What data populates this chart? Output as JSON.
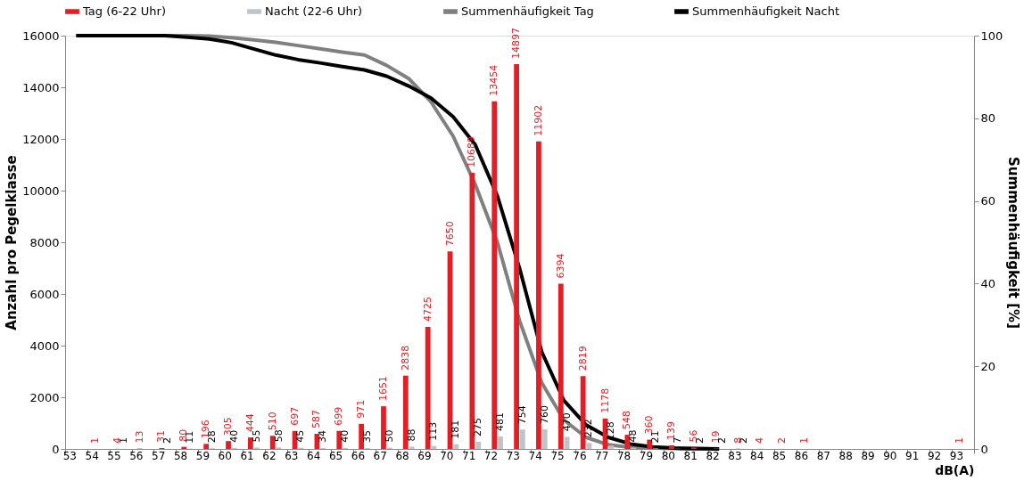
{
  "chart_data": {
    "type": "bar",
    "xlabel": "dB(A)",
    "ylabel": "Anzahl pro Pegelklasse",
    "y2label": "Summenhäufigkeit [%]",
    "categories": [
      "53",
      "54",
      "55",
      "56",
      "57",
      "58",
      "59",
      "60",
      "61",
      "62",
      "63",
      "64",
      "65",
      "66",
      "67",
      "68",
      "69",
      "70",
      "71",
      "72",
      "73",
      "74",
      "75",
      "76",
      "77",
      "78",
      "79",
      "80",
      "81",
      "82",
      "83",
      "84",
      "85",
      "86",
      "87",
      "88",
      "89",
      "90",
      "91",
      "92",
      "93"
    ],
    "ylim": [
      0,
      16000
    ],
    "yticks": [
      0,
      2000,
      4000,
      6000,
      8000,
      10000,
      12000,
      14000,
      16000
    ],
    "y2lim": [
      0,
      100
    ],
    "y2ticks": [
      0,
      20,
      40,
      60,
      80,
      100
    ],
    "grid": false,
    "legend": "top",
    "series": [
      {
        "name": "Tag (6-22 Uhr)",
        "color": "#e31e24",
        "values": [
          null,
          1,
          4,
          13,
          31,
          80,
          196,
          305,
          444,
          510,
          697,
          587,
          699,
          971,
          1651,
          2838,
          4725,
          7650,
          10689,
          13454,
          14897,
          11902,
          6394,
          2819,
          1178,
          548,
          360,
          139,
          56,
          19,
          8,
          4,
          2,
          1,
          null,
          null,
          null,
          null,
          null,
          null,
          1
        ],
        "value_labels": [
          null,
          "1",
          "4",
          "13",
          "31",
          "80",
          "196",
          "305",
          "444",
          "510",
          "697",
          "587",
          "699",
          "971",
          "1651",
          "2838",
          "4725",
          "7650",
          "10689",
          "13454",
          "14897",
          "11902",
          "6394",
          "2819",
          "1178",
          "548",
          "360",
          "139",
          "56",
          "19",
          "8",
          "4",
          "2",
          "1",
          null,
          null,
          null,
          null,
          null,
          null,
          "1"
        ]
      },
      {
        "name": "Nacht (22-6 Uhr)",
        "color": "#bfc4c8",
        "values": [
          null,
          null,
          1,
          null,
          2,
          11,
          28,
          40,
          55,
          58,
          45,
          34,
          40,
          35,
          50,
          88,
          113,
          181,
          275,
          481,
          754,
          760,
          470,
          232,
          128,
          48,
          21,
          7,
          2,
          2,
          2,
          null,
          null,
          null,
          null,
          null,
          null,
          null,
          null,
          null,
          null
        ],
        "value_labels": [
          null,
          null,
          "1",
          null,
          "2",
          "11",
          "28",
          "40",
          "55",
          "58",
          "45",
          "34",
          "40",
          "35",
          "50",
          "88",
          "113",
          "181",
          "275",
          "481",
          "754",
          "760",
          "470",
          "232",
          "128",
          "48",
          "21",
          "7",
          "2",
          "2",
          "2",
          null,
          null,
          null,
          null,
          null,
          null,
          null,
          null,
          null,
          null
        ]
      },
      {
        "name": "Summenhäufigkeit Tag",
        "type": "line",
        "axis": "y2",
        "color": "#808080",
        "values": [
          100,
          100,
          100,
          100,
          100,
          100,
          99.9,
          99.5,
          99,
          98.4,
          97.6,
          96.8,
          96,
          95.3,
          92.8,
          89.6,
          84,
          75.7,
          64,
          50,
          31,
          16,
          7,
          2.8,
          1,
          0.4,
          0.2,
          0.1,
          0,
          0,
          null,
          null,
          null,
          null,
          null,
          null,
          null,
          null,
          null,
          null,
          null
        ]
      },
      {
        "name": "Summenhäufigkeit Nacht",
        "type": "line",
        "axis": "y2",
        "color": "#000000",
        "values": [
          100,
          100,
          100,
          100,
          100,
          99.6,
          99.2,
          98.3,
          96.8,
          95.3,
          94.2,
          93.4,
          92.5,
          91.7,
          90.2,
          87.8,
          84.9,
          80.4,
          73.6,
          61.2,
          43.7,
          23.5,
          11.7,
          5.8,
          2.8,
          1.2,
          0.5,
          0.2,
          0.1,
          0,
          null,
          null,
          null,
          null,
          null,
          null,
          null,
          null,
          null,
          null,
          null
        ]
      }
    ]
  }
}
